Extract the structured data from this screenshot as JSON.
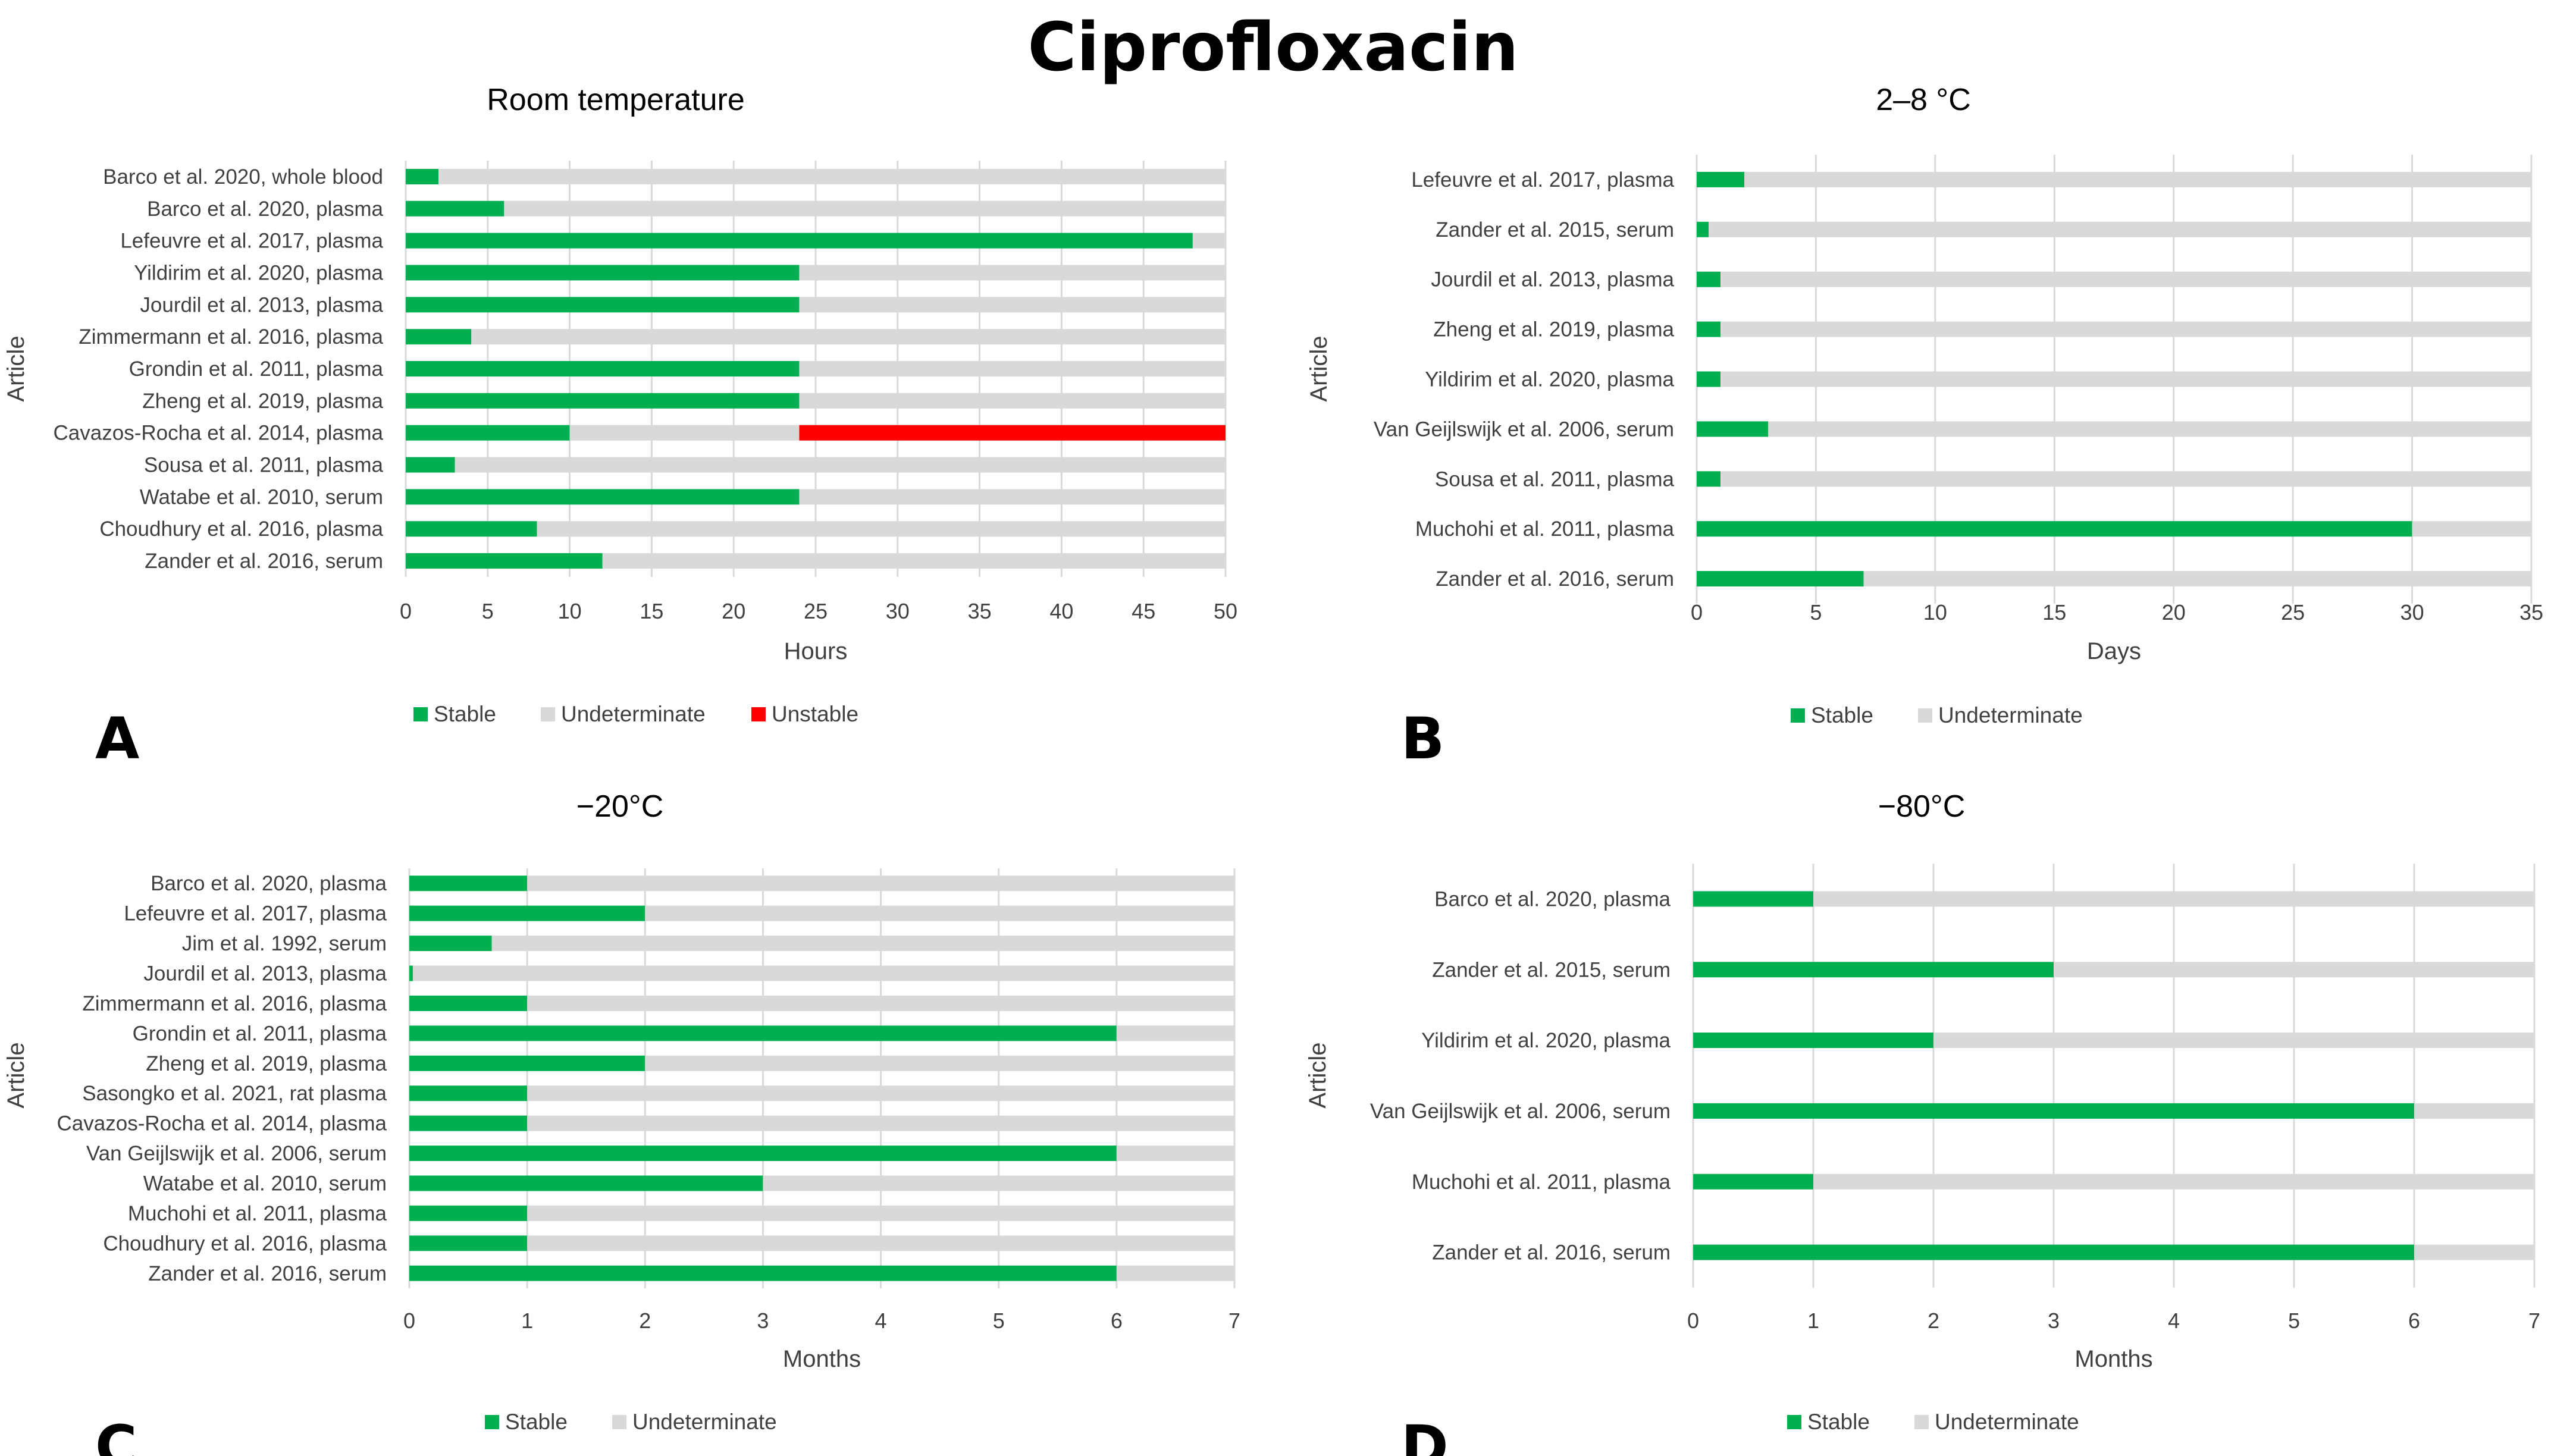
{
  "figure": {
    "title": "Ciprofloxacin",
    "colors": {
      "stable": "#00b050",
      "undeterminate": "#d9d9d9",
      "unstable": "#ff0000",
      "grid": "#d9d9d9"
    }
  },
  "chart_data": [
    {
      "id": "A",
      "panel_label": "A",
      "type": "bar",
      "orientation": "horizontal",
      "stacked": true,
      "title": "Room temperature",
      "xlabel": "Hours",
      "ylabel": "Article",
      "xlim": [
        0,
        50
      ],
      "xticks": [
        0,
        5,
        10,
        15,
        20,
        25,
        30,
        35,
        40,
        45,
        50
      ],
      "categories": [
        "Barco et al. 2020, whole blood",
        "Barco et al. 2020, plasma",
        "Lefeuvre et al. 2017, plasma",
        "Yildirim et al. 2020, plasma",
        "Jourdil et al. 2013, plasma",
        "Zimmermann et al. 2016, plasma",
        "Grondin et al. 2011, plasma",
        "Zheng et al. 2019, plasma",
        "Cavazos-Rocha et al. 2014, plasma",
        "Sousa et al. 2011, plasma",
        "Watabe et al. 2010, serum",
        "Choudhury et al. 2016, plasma",
        "Zander et al. 2016, serum"
      ],
      "series": [
        {
          "name": "Stable",
          "color": "#00b050",
          "values": [
            2,
            6,
            48,
            24,
            24,
            4,
            24,
            24,
            10,
            3,
            24,
            8,
            12
          ]
        },
        {
          "name": "Undeterminate",
          "color": "#d9d9d9",
          "values": [
            48,
            44,
            2,
            26,
            26,
            46,
            26,
            26,
            14,
            47,
            26,
            42,
            38
          ]
        },
        {
          "name": "Unstable",
          "color": "#ff0000",
          "values": [
            0,
            0,
            0,
            0,
            0,
            0,
            0,
            0,
            26,
            0,
            0,
            0,
            0
          ]
        }
      ],
      "legend": [
        "Stable",
        "Undeterminate",
        "Unstable"
      ]
    },
    {
      "id": "B",
      "panel_label": "B",
      "type": "bar",
      "orientation": "horizontal",
      "stacked": true,
      "title": "2–8 °C",
      "xlabel": "Days",
      "ylabel": "Article",
      "xlim": [
        0,
        35
      ],
      "xticks": [
        0,
        5,
        10,
        15,
        20,
        25,
        30,
        35
      ],
      "categories": [
        "Lefeuvre et al. 2017, plasma",
        "Zander et al. 2015, serum",
        "Jourdil et al. 2013, plasma",
        "Zheng et al. 2019, plasma",
        "Yildirim et al. 2020, plasma",
        "Van Geijlswijk et al. 2006, serum",
        "Sousa et al. 2011, plasma",
        "Muchohi et al. 2011, plasma",
        "Zander et al. 2016, serum"
      ],
      "series": [
        {
          "name": "Stable",
          "color": "#00b050",
          "values": [
            2,
            0.5,
            1,
            1,
            1,
            3,
            1,
            30,
            7
          ]
        },
        {
          "name": "Undeterminate",
          "color": "#d9d9d9",
          "values": [
            33,
            34.5,
            34,
            34,
            34,
            32,
            34,
            5,
            28
          ]
        }
      ],
      "legend": [
        "Stable",
        "Undeterminate"
      ]
    },
    {
      "id": "C",
      "panel_label": "C",
      "type": "bar",
      "orientation": "horizontal",
      "stacked": true,
      "title": "−20°C",
      "xlabel": "Months",
      "ylabel": "Article",
      "xlim": [
        0,
        7
      ],
      "xticks": [
        0,
        1,
        2,
        3,
        4,
        5,
        6,
        7
      ],
      "categories": [
        "Barco et al. 2020, plasma",
        "Lefeuvre et al. 2017, plasma",
        "Jim et al. 1992, serum",
        "Jourdil et al. 2013, plasma",
        "Zimmermann et al. 2016, plasma",
        "Grondin et al. 2011, plasma",
        "Zheng et al. 2019, plasma",
        "Sasongko et al. 2021, rat plasma",
        "Cavazos-Rocha et al. 2014, plasma",
        "Van Geijlswijk et al. 2006, serum",
        "Watabe et al. 2010, serum",
        "Muchohi et al. 2011, plasma",
        "Choudhury et al. 2016, plasma",
        "Zander et al. 2016, serum"
      ],
      "series": [
        {
          "name": "Stable",
          "color": "#00b050",
          "values": [
            1,
            2,
            0.7,
            0.03,
            1,
            6,
            2,
            1,
            1,
            6,
            3,
            1,
            1,
            6
          ]
        },
        {
          "name": "Undeterminate",
          "color": "#d9d9d9",
          "values": [
            6,
            5,
            6.3,
            6.97,
            6,
            1,
            5,
            6,
            6,
            1,
            4,
            6,
            6,
            1
          ]
        }
      ],
      "legend": [
        "Stable",
        "Undeterminate"
      ]
    },
    {
      "id": "D",
      "panel_label": "D",
      "type": "bar",
      "orientation": "horizontal",
      "stacked": true,
      "title": "−80°C",
      "xlabel": "Months",
      "ylabel": "Article",
      "xlim": [
        0,
        7
      ],
      "xticks": [
        0,
        1,
        2,
        3,
        4,
        5,
        6,
        7
      ],
      "categories": [
        "Barco et al. 2020, plasma",
        "Zander et al. 2015, serum",
        "Yildirim et al. 2020, plasma",
        "Van Geijlswijk et al. 2006, serum",
        "Muchohi et al. 2011, plasma",
        "Zander et al. 2016, serum"
      ],
      "series": [
        {
          "name": "Stable",
          "color": "#00b050",
          "values": [
            1,
            3,
            2,
            6,
            1,
            6
          ]
        },
        {
          "name": "Undeterminate",
          "color": "#d9d9d9",
          "values": [
            6,
            4,
            5,
            1,
            6,
            1
          ]
        }
      ],
      "legend": [
        "Stable",
        "Undeterminate"
      ]
    }
  ]
}
